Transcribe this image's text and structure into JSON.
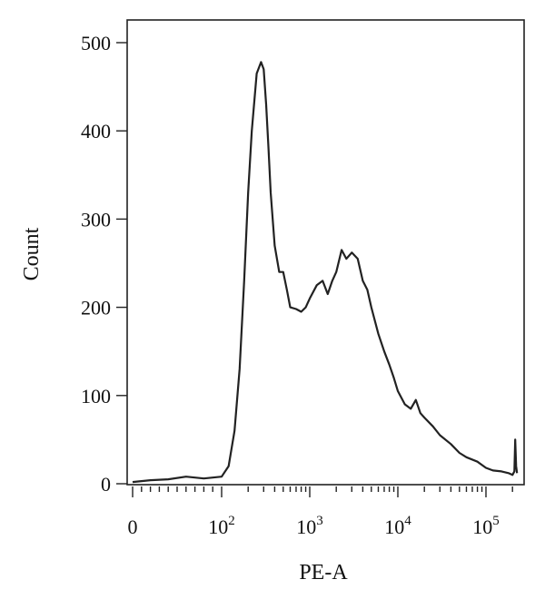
{
  "chart_data": {
    "type": "line",
    "title": "",
    "xlabel": "PE-A",
    "ylabel": "Count",
    "x_scale": "biexponential",
    "ylim": [
      0,
      520
    ],
    "y_ticks": [
      0,
      100,
      200,
      300,
      400,
      500
    ],
    "x_major_ticks": [
      {
        "value": 0,
        "base": "0",
        "exp": ""
      },
      {
        "value": 100,
        "base": "10",
        "exp": "2"
      },
      {
        "value": 1000,
        "base": "10",
        "exp": "3"
      },
      {
        "value": 10000,
        "base": "10",
        "exp": "4"
      },
      {
        "value": 100000,
        "base": "10",
        "exp": "5"
      }
    ],
    "grid": false,
    "series": [
      {
        "color": "#222222",
        "x": [
          0,
          10,
          20,
          40,
          60,
          80,
          100,
          120,
          140,
          160,
          180,
          200,
          220,
          250,
          280,
          300,
          320,
          340,
          360,
          400,
          450,
          500,
          550,
          600,
          700,
          800,
          900,
          1000,
          1200,
          1400,
          1600,
          1800,
          2000,
          2300,
          2600,
          3000,
          3500,
          4000,
          4500,
          5000,
          6000,
          7000,
          8000,
          9000,
          10000,
          12000,
          14000,
          16000,
          18000,
          20000,
          25000,
          30000,
          40000,
          50000,
          60000,
          80000,
          100000,
          120000,
          150000,
          180000,
          200000,
          210000,
          215000,
          220000,
          225000
        ],
        "y": [
          2,
          3,
          4,
          5,
          8,
          6,
          8,
          20,
          60,
          130,
          230,
          330,
          400,
          465,
          478,
          470,
          430,
          380,
          330,
          270,
          240,
          240,
          220,
          200,
          198,
          195,
          200,
          210,
          225,
          230,
          215,
          230,
          240,
          265,
          255,
          262,
          255,
          230,
          220,
          200,
          170,
          150,
          135,
          120,
          105,
          90,
          85,
          95,
          80,
          75,
          65,
          55,
          45,
          35,
          30,
          25,
          18,
          15,
          14,
          12,
          10,
          14,
          50,
          20,
          12
        ]
      }
    ]
  }
}
